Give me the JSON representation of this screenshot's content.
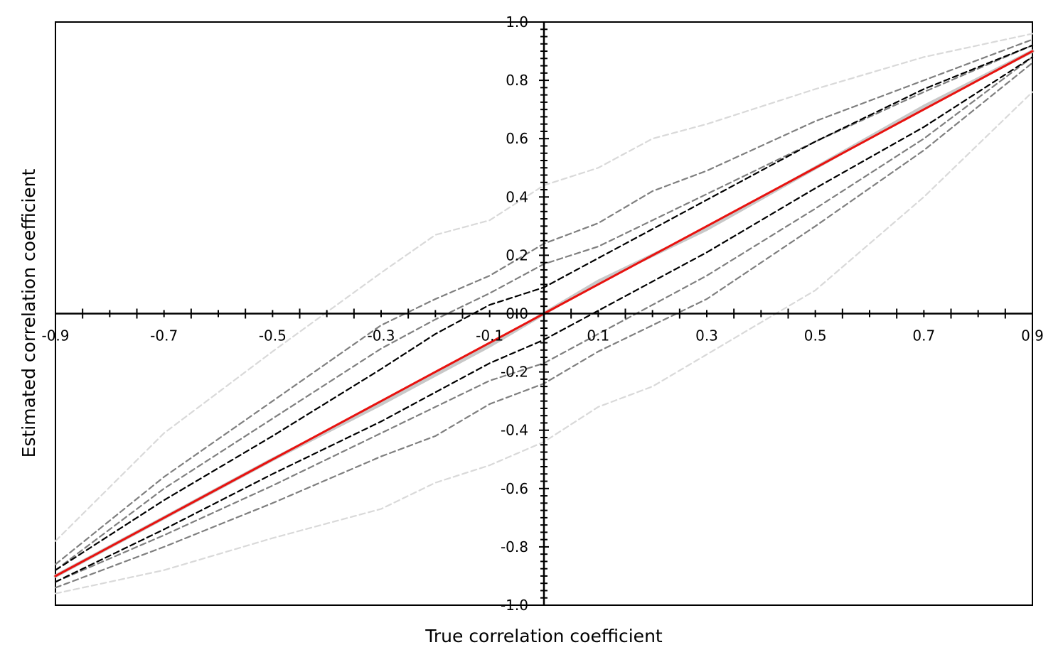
{
  "chart_data": {
    "type": "line",
    "title": "",
    "xlabel": "True correlation coefficient",
    "ylabel": "Estimated correlation coefficient",
    "xlim": [
      -0.9,
      0.9
    ],
    "ylim": [
      -1.0,
      1.0
    ],
    "x_tick_labels": [
      "-0.9",
      "-0.7",
      "-0.5",
      "-0.3",
      "-0.1",
      "0.1",
      "0.3",
      "0.5",
      "0.7",
      "0.9"
    ],
    "y_tick_labels": [
      "1.0",
      "0.8",
      "0.6",
      "0.4",
      "0.2",
      "0.0",
      "-0.2",
      "-0.4",
      "-0.6",
      "-0.8",
      "-1.0"
    ],
    "grid": false,
    "axes_through_origin": true,
    "x": [
      -0.9,
      -0.7,
      -0.5,
      -0.3,
      -0.2,
      -0.1,
      0.0,
      0.1,
      0.2,
      0.3,
      0.5,
      0.7,
      0.9
    ],
    "series": [
      {
        "style": "dashed",
        "color": "#d9d9d9",
        "values": [
          -0.78,
          -0.41,
          -0.13,
          0.14,
          0.27,
          0.32,
          0.44,
          0.5,
          0.6,
          0.65,
          0.77,
          0.88,
          0.96
        ]
      },
      {
        "style": "dashed",
        "color": "#d9d9d9",
        "values": [
          -0.96,
          -0.88,
          -0.77,
          -0.67,
          -0.58,
          -0.52,
          -0.44,
          -0.32,
          -0.25,
          -0.14,
          0.08,
          0.4,
          0.76
        ]
      },
      {
        "style": "dashed",
        "color": "#7f7f7f",
        "values": [
          -0.86,
          -0.56,
          -0.3,
          -0.04,
          0.05,
          0.13,
          0.24,
          0.31,
          0.42,
          0.49,
          0.66,
          0.8,
          0.94
        ]
      },
      {
        "style": "dashed",
        "color": "#7f7f7f",
        "values": [
          -0.88,
          -0.6,
          -0.36,
          -0.12,
          -0.02,
          0.07,
          0.17,
          0.23,
          0.32,
          0.41,
          0.59,
          0.76,
          0.92
        ]
      },
      {
        "style": "dashed",
        "color": "#7f7f7f",
        "values": [
          -0.92,
          -0.76,
          -0.59,
          -0.41,
          -0.32,
          -0.23,
          -0.17,
          -0.07,
          0.03,
          0.13,
          0.36,
          0.6,
          0.88
        ]
      },
      {
        "style": "dashed",
        "color": "#7f7f7f",
        "values": [
          -0.94,
          -0.8,
          -0.65,
          -0.49,
          -0.42,
          -0.31,
          -0.24,
          -0.13,
          -0.04,
          0.05,
          0.3,
          0.56,
          0.86
        ]
      },
      {
        "style": "dashed",
        "color": "#000000",
        "values": [
          -0.88,
          -0.64,
          -0.42,
          -0.19,
          -0.07,
          0.03,
          0.09,
          0.19,
          0.29,
          0.39,
          0.59,
          0.77,
          0.92
        ]
      },
      {
        "style": "dashed",
        "color": "#000000",
        "values": [
          -0.92,
          -0.74,
          -0.55,
          -0.37,
          -0.27,
          -0.17,
          -0.09,
          0.01,
          0.11,
          0.21,
          0.43,
          0.64,
          0.88
        ]
      },
      {
        "style": "solid",
        "color": "#c8c8c8",
        "values": [
          -0.9,
          -0.7,
          -0.5,
          -0.31,
          -0.21,
          -0.11,
          0.0,
          0.11,
          0.2,
          0.29,
          0.5,
          0.71,
          0.9
        ]
      },
      {
        "style": "solid",
        "color": "#e8120f",
        "values": [
          -0.9,
          -0.7,
          -0.5,
          -0.3,
          -0.2,
          -0.1,
          0.0,
          0.1,
          0.2,
          0.3,
          0.5,
          0.7,
          0.9
        ]
      }
    ]
  }
}
